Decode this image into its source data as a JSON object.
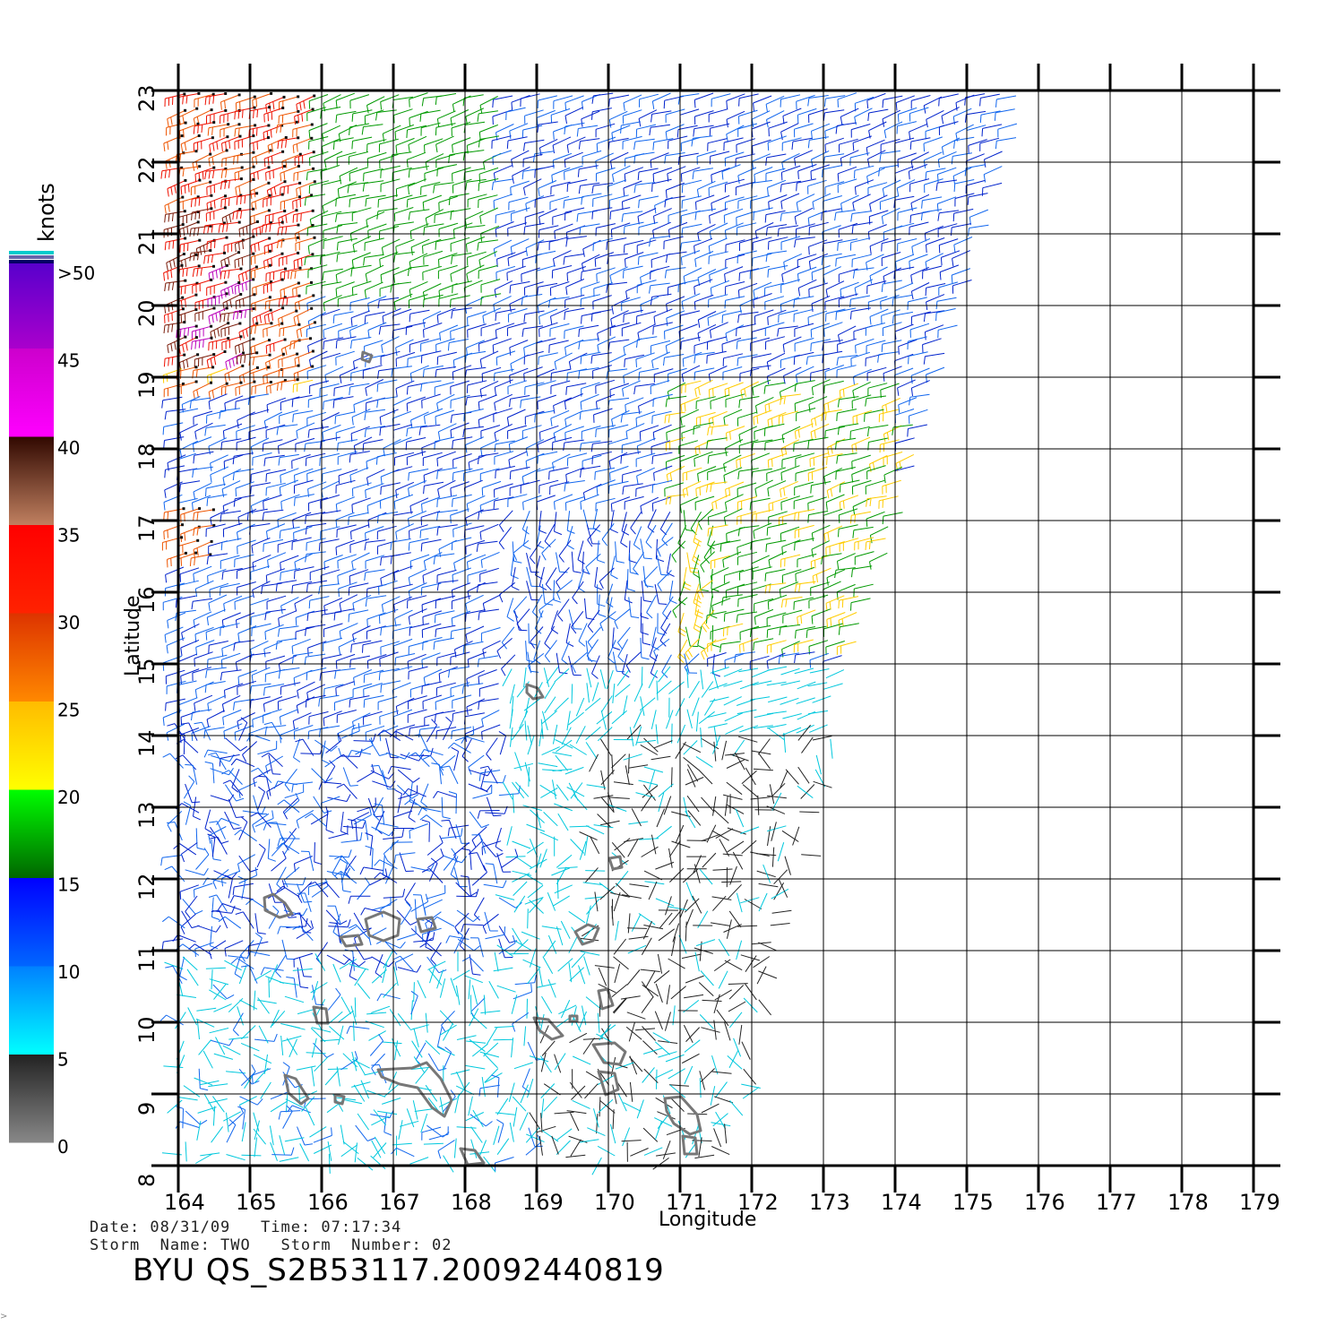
{
  "map": {
    "longitude_label": "Longitude",
    "latitude_label": "Latitude",
    "lon_ticks": [
      "164",
      "165",
      "166",
      "167",
      "168",
      "169",
      "170",
      "171",
      "172",
      "173",
      "174",
      "175",
      "176",
      "177",
      "178",
      "179"
    ],
    "lat_ticks": [
      "23",
      "22",
      "21",
      "20",
      "19",
      "18",
      "17",
      "16",
      "15",
      "14",
      "13",
      "12",
      "11",
      "10",
      "9",
      "8"
    ],
    "lon_range": [
      164,
      179
    ],
    "lat_range": [
      8,
      23
    ],
    "grid": true,
    "land_color": "#777777"
  },
  "legend": {
    "title": "knots",
    "labels": [
      ">50",
      "45",
      "40",
      "35",
      "30",
      "25",
      "20",
      "15",
      "10",
      "5",
      "0"
    ],
    "bands": [
      {
        "label": "0-5",
        "colors": [
          "#888888",
          "#222222"
        ]
      },
      {
        "label": "5-10",
        "colors": [
          "#00ffff",
          "#0080ff"
        ]
      },
      {
        "label": "10-15",
        "colors": [
          "#0066ff",
          "#0000ff"
        ]
      },
      {
        "label": "15-20",
        "colors": [
          "#006600",
          "#00ff00"
        ]
      },
      {
        "label": "20-25",
        "colors": [
          "#ffff00",
          "#ffbb00"
        ]
      },
      {
        "label": "25-30",
        "colors": [
          "#ff8800",
          "#dd3300"
        ]
      },
      {
        "label": "30-35",
        "colors": [
          "#ff2200",
          "#ff0000"
        ]
      },
      {
        "label": "35-40",
        "colors": [
          "#c08060",
          "#300800"
        ]
      },
      {
        "label": "40-45",
        "colors": [
          "#ff00ff",
          "#cc00cc"
        ]
      },
      {
        "label": "45-50",
        "colors": [
          "#aa00cc",
          "#5500cc"
        ]
      }
    ],
    "top_stripe_colors": [
      "#00cccc",
      "#6666aa",
      "#000066"
    ]
  },
  "footer": {
    "date_line": "Date: 08/31/09   Time: 07:17:34",
    "storm_line": "Storm  Name: TWO   Storm  Number: 02",
    "product_id": "BYU  QS_S2B53117.20092440819",
    "corner_mark": ">"
  }
}
